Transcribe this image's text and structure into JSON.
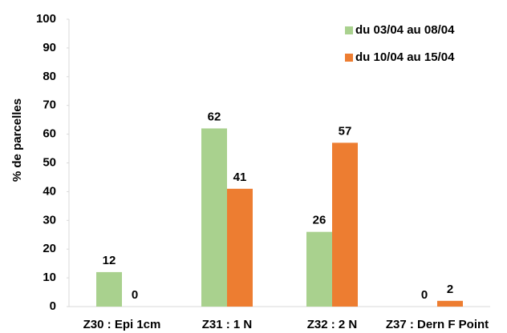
{
  "chart_data": {
    "type": "bar",
    "y_label": "% de parcelles",
    "categories": [
      "Z30 : Epi 1cm",
      "Z31 : 1 N",
      "Z32 : 2 N",
      "Z37 : Dern F Point"
    ],
    "series": [
      {
        "name": "du 03/04 au 08/04",
        "color": "#a9d18e",
        "values": [
          12,
          62,
          26,
          0
        ]
      },
      {
        "name": "du 10/04 au 15/04",
        "color": "#ed7d31",
        "values": [
          0,
          41,
          57,
          2
        ]
      }
    ],
    "ylim": [
      0,
      100
    ],
    "yticks": [
      0,
      10,
      20,
      30,
      40,
      50,
      60,
      70,
      80,
      90,
      100
    ],
    "legend": "top-right"
  }
}
